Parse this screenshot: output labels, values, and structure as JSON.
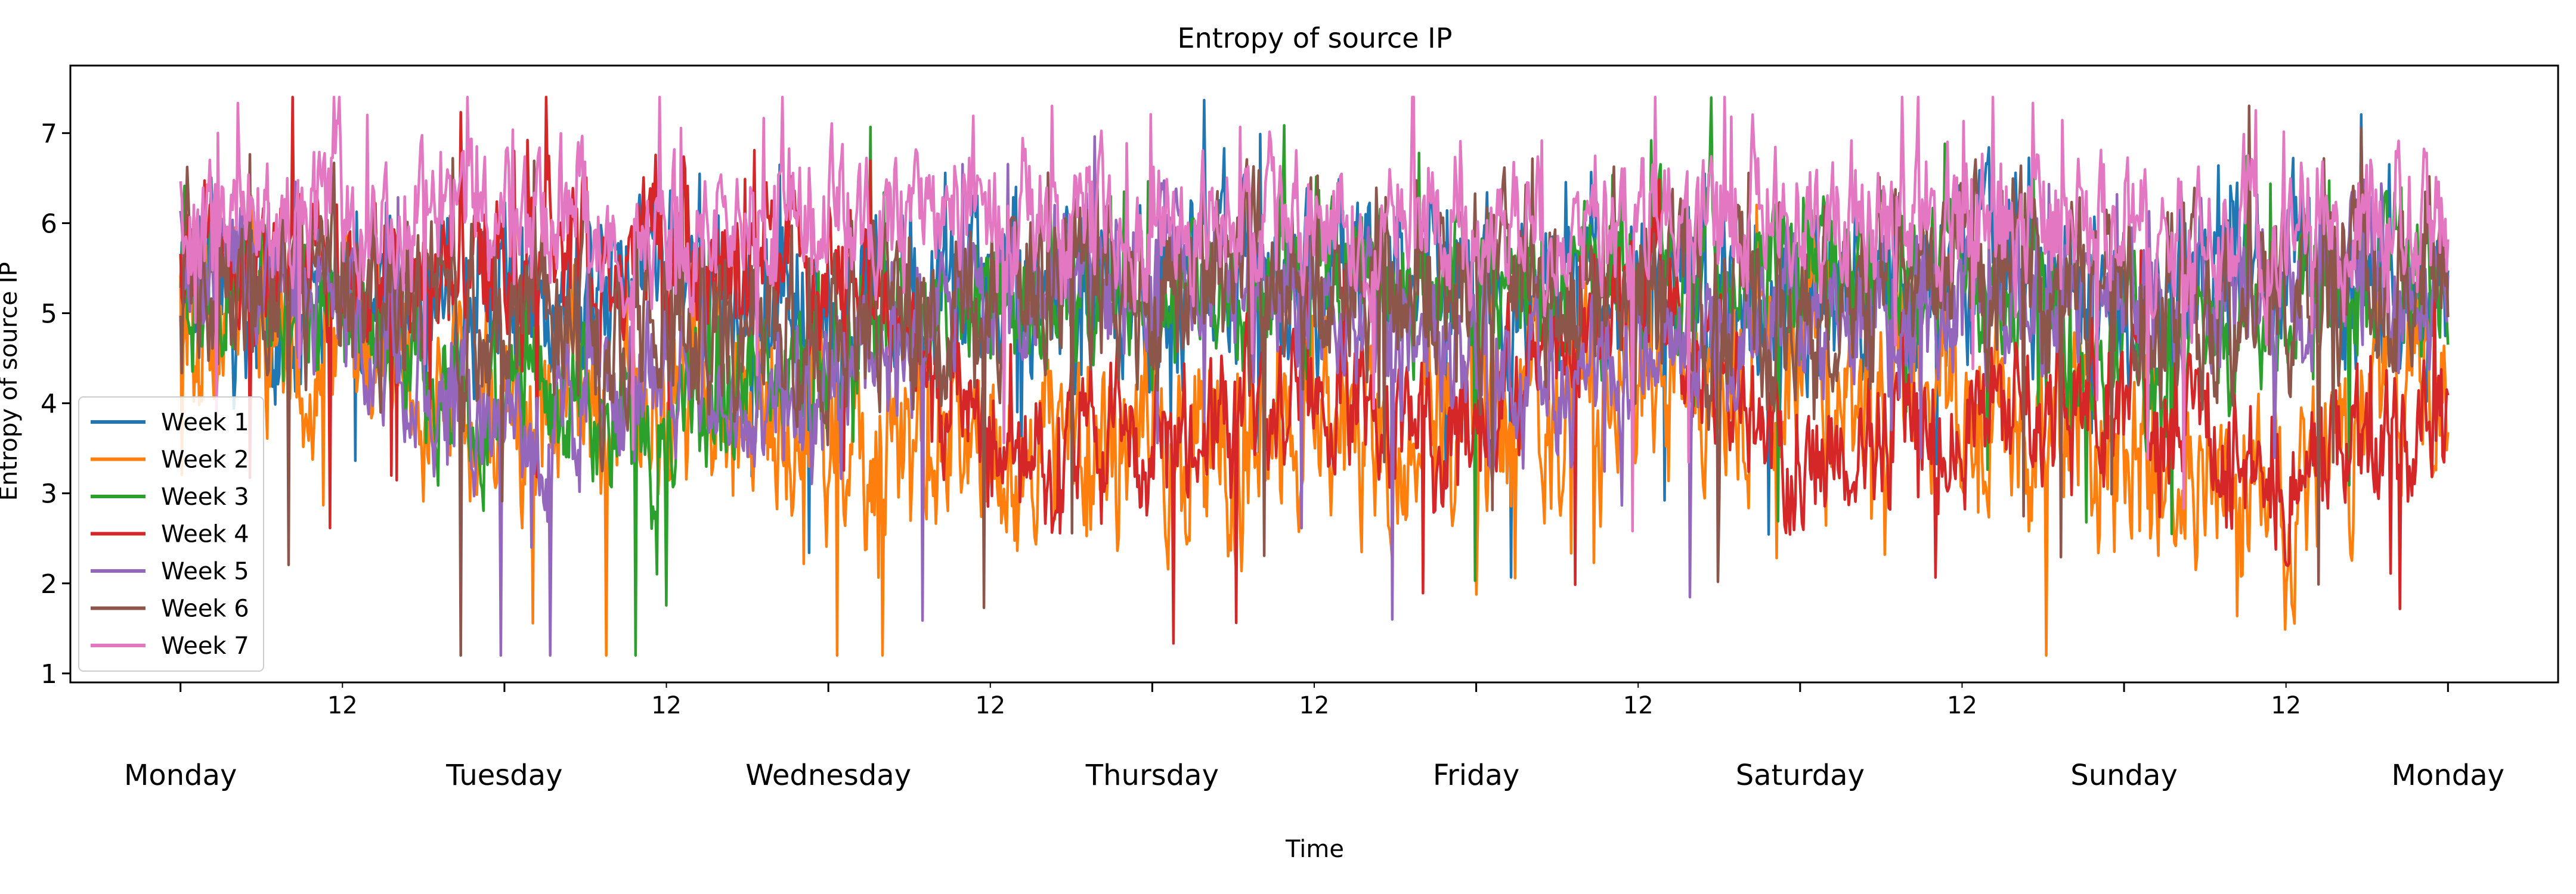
{
  "chart_data": {
    "type": "line",
    "title": "Entropy of source IP",
    "xlabel": "Time",
    "ylabel": "Entropy of source IP",
    "ylim": [
      0.9,
      7.75
    ],
    "yticks": [
      1,
      2,
      3,
      4,
      5,
      6,
      7
    ],
    "xlim": [
      -0.34,
      7.34
    ],
    "day_labels": [
      "Monday",
      "Tuesday",
      "Wednesday",
      "Thursday",
      "Friday",
      "Saturday",
      "Sunday",
      "Monday"
    ],
    "minor_tick_label": "12",
    "grid": false,
    "legend_position": "lower-left",
    "series": [
      {
        "name": "Week 1",
        "color": "#1f77b4"
      },
      {
        "name": "Week 2",
        "color": "#ff7f0e"
      },
      {
        "name": "Week 3",
        "color": "#2ca02c"
      },
      {
        "name": "Week 4",
        "color": "#d62728"
      },
      {
        "name": "Week 5",
        "color": "#9467bd"
      },
      {
        "name": "Week 6",
        "color": "#8c564b"
      },
      {
        "name": "Week 7",
        "color": "#e377c2"
      }
    ]
  }
}
